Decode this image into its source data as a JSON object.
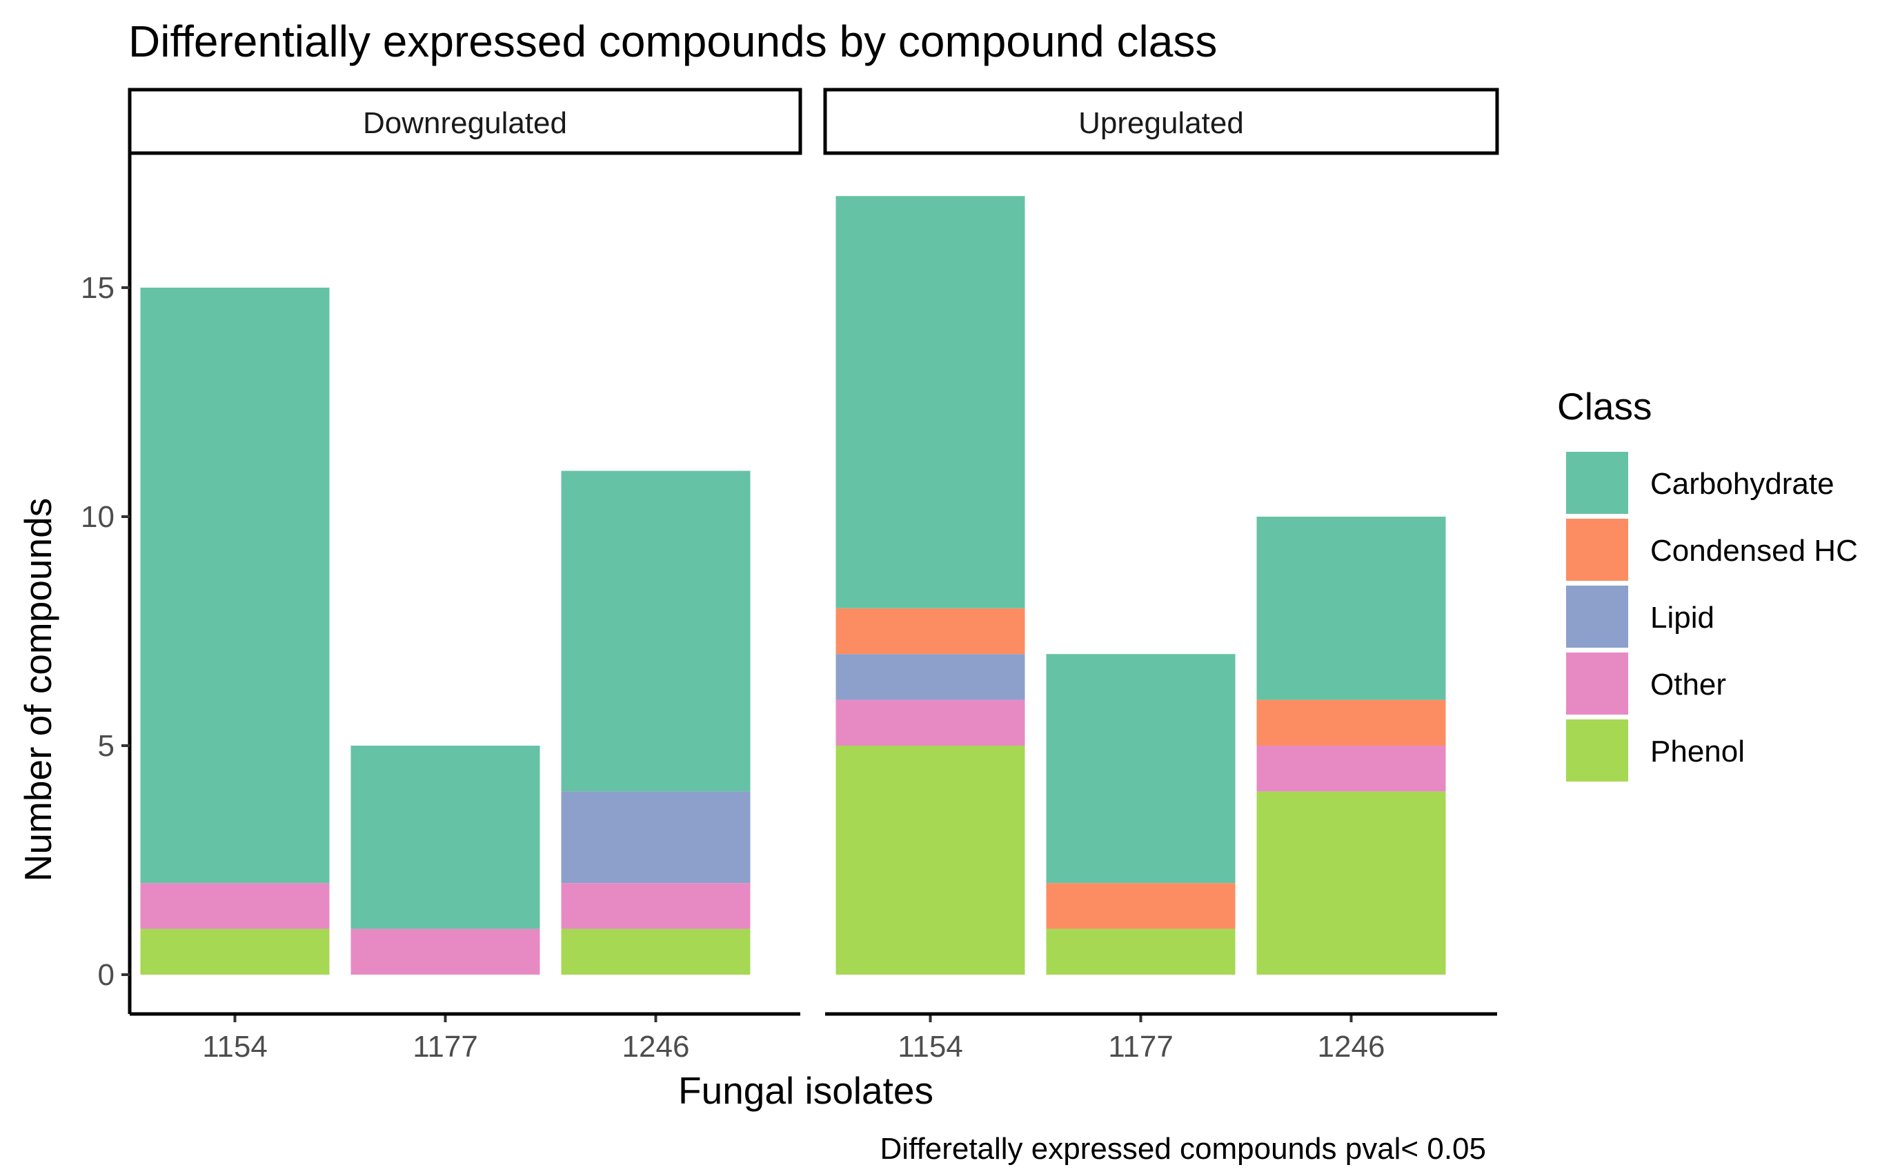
{
  "chart_data": {
    "type": "bar",
    "stacked": true,
    "title": "Differentially expressed compounds by compound class",
    "xlabel": "Fungal isolates",
    "ylabel": "Number of compounds",
    "caption": "Differetally expressed compounds pval< 0.05",
    "ylim": [
      0,
      17.6
    ],
    "yticks": [
      0,
      5,
      10,
      15
    ],
    "categories": [
      "1154",
      "1177",
      "1246"
    ],
    "legend": {
      "title": "Class",
      "position": "right"
    },
    "series": [
      {
        "name": "Phenol",
        "color": "#A6D854"
      },
      {
        "name": "Other",
        "color": "#E78AC3"
      },
      {
        "name": "Lipid",
        "color": "#8DA0CB"
      },
      {
        "name": "Condensed HC",
        "color": "#FC8D62"
      },
      {
        "name": "Carbohydrate",
        "color": "#66C2A5"
      }
    ],
    "legend_order": [
      "Carbohydrate",
      "Condensed HC",
      "Lipid",
      "Other",
      "Phenol"
    ],
    "facets": [
      {
        "label": "Downregulated",
        "values": {
          "Phenol": [
            1,
            0,
            1
          ],
          "Other": [
            1,
            1,
            1
          ],
          "Lipid": [
            0,
            0,
            2
          ],
          "Condensed HC": [
            0,
            0,
            0
          ],
          "Carbohydrate": [
            13,
            4,
            7
          ]
        }
      },
      {
        "label": "Upregulated",
        "values": {
          "Phenol": [
            5,
            1,
            4
          ],
          "Other": [
            1,
            0,
            1
          ],
          "Lipid": [
            1,
            0,
            0
          ],
          "Condensed HC": [
            1,
            1,
            1
          ],
          "Carbohydrate": [
            9,
            5,
            4
          ]
        }
      }
    ]
  }
}
